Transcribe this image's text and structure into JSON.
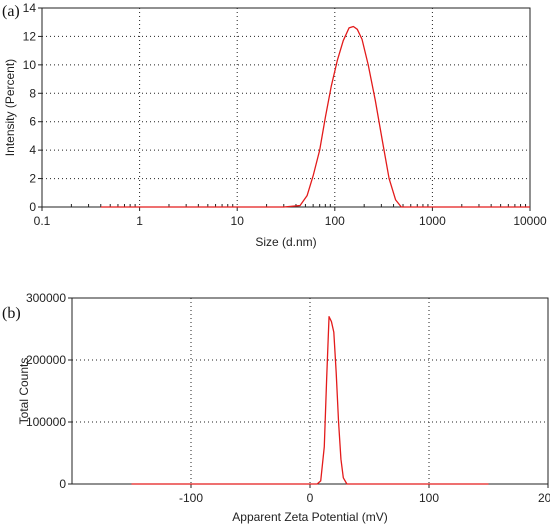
{
  "chart_data": [
    {
      "type": "line",
      "panel_label": "(a)",
      "xlabel": "Size (d.nm)",
      "ylabel": "Intensity (Percent)",
      "x_scale": "log",
      "xlim": [
        0.1,
        10000
      ],
      "ylim": [
        0,
        14
      ],
      "x_ticks": [
        0.1,
        1,
        10,
        100,
        1000,
        10000
      ],
      "x_tick_labels": [
        "0.1",
        "1",
        "10",
        "100",
        "1000",
        "10000"
      ],
      "y_ticks": [
        0,
        2,
        4,
        6,
        8,
        10,
        12,
        14
      ],
      "y_tick_labels": [
        "0",
        "2",
        "4",
        "6",
        "8",
        "10",
        "12",
        "14"
      ],
      "grid": "dotted",
      "series": [
        {
          "color": "#e31b1b",
          "x": [
            0.4,
            30,
            44,
            52,
            60,
            70,
            80,
            92,
            106,
            122,
            140,
            155,
            170,
            190,
            220,
            260,
            310,
            360,
            420,
            480,
            10000
          ],
          "y": [
            0,
            0,
            0.1,
            0.8,
            2.2,
            4.0,
            6.3,
            8.5,
            10.3,
            11.7,
            12.6,
            12.7,
            12.5,
            11.8,
            10.0,
            7.5,
            4.5,
            2.0,
            0.5,
            0,
            0
          ]
        }
      ]
    },
    {
      "type": "line",
      "panel_label": "(b)",
      "xlabel": "Apparent Zeta Potential (mV)",
      "ylabel": "Total Counts",
      "xlim": [
        -200,
        200
      ],
      "ylim": [
        0,
        300000
      ],
      "x_ticks": [
        -100,
        0,
        100,
        200
      ],
      "x_tick_labels": [
        "-100",
        "0",
        "100",
        "200"
      ],
      "y_ticks": [
        0,
        100000,
        200000,
        300000
      ],
      "y_tick_labels": [
        "0",
        "100000",
        "200000",
        "300000"
      ],
      "grid": "dotted",
      "series": [
        {
          "color": "#e31b1b",
          "x": [
            -150,
            6,
            9,
            12,
            14,
            16,
            18,
            20,
            22,
            24,
            26,
            28,
            31,
            150
          ],
          "y": [
            0,
            0,
            5000,
            60000,
            170000,
            270000,
            262000,
            245000,
            180000,
            100000,
            40000,
            10000,
            0,
            0
          ]
        }
      ]
    }
  ]
}
